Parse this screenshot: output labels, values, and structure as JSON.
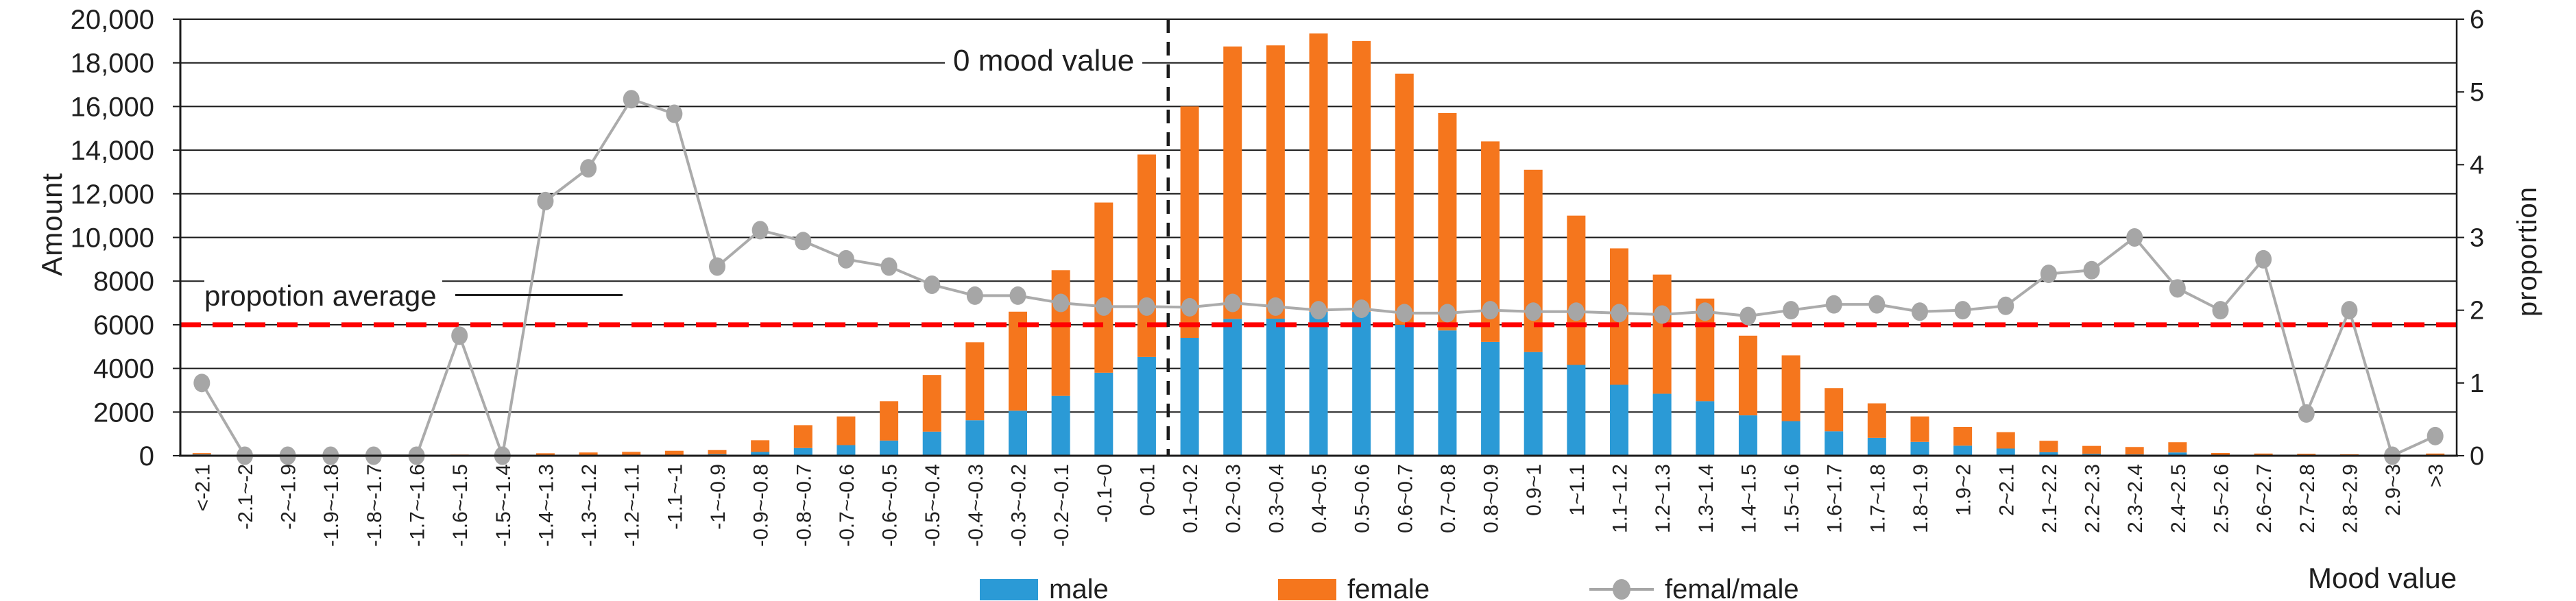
{
  "chart_data": {
    "type": "bar",
    "subtype": "stacked-bar-with-line-overlay",
    "title": "",
    "categories": [
      "<-2.1",
      "-2.1~-2",
      "-2~-1.9",
      "-1.9~-1.8",
      "-1.8~-1.7",
      "-1.7~-1.6",
      "-1.6~-1.5",
      "-1.5~-1.4",
      "-1.4~-1.3",
      "-1.3~-1.2",
      "-1.2~-1.1",
      "-1.1~-1",
      "-1~-0.9",
      "-0.9~-0.8",
      "-0.8~-0.7",
      "-0.7~-0.6",
      "-0.6~-0.5",
      "-0.5~-0.4",
      "-0.4~-0.3",
      "-0.3~-0.2",
      "-0.2~-0.1",
      "-0.1~0",
      "0~0.1",
      "0.1~0.2",
      "0.2~0.3",
      "0.3~0.4",
      "0.4~0.5",
      "0.5~0.6",
      "0.6~0.7",
      "0.7~0.8",
      "0.8~0.9",
      "0.9~1",
      "1~1.1",
      "1.1~1.2",
      "1.2~1.3",
      "1.3~1.4",
      "1.4~1.5",
      "1.5~1.6",
      "1.6~1.7",
      "1.7~1.8",
      "1.8~1.9",
      "1.9~2",
      "2~2.1",
      "2.1~2.2",
      "2.2~2.3",
      "2.3~2.4",
      "2.4~2.5",
      "2.5~2.6",
      "2.6~2.7",
      "2.7~2.8",
      "2.8~2.9",
      "2.9~3",
      ">3"
    ],
    "series": [
      {
        "name": "male",
        "type": "bar",
        "stack": "amount",
        "color": "#2b9ad6",
        "values": [
          60,
          0,
          0,
          0,
          0,
          0,
          20,
          0,
          25,
          30,
          30,
          40,
          72,
          173,
          354,
          486,
          694,
          1104,
          1625,
          2063,
          2742,
          3803,
          4525,
          5400,
          6270,
          6280,
          6600,
          6600,
          6000,
          5740,
          5215,
          4750,
          4160,
          3250,
          2840,
          2500,
          1850,
          1585,
          1120,
          820,
          635,
          460,
          330,
          160,
          85,
          60,
          150,
          30,
          25,
          25,
          20,
          5,
          30
        ]
      },
      {
        "name": "female",
        "type": "bar",
        "stack": "amount",
        "color": "#f5761d",
        "values": [
          60,
          0,
          0,
          0,
          0,
          0,
          33,
          0,
          88,
          119,
          147,
          188,
          187,
          537,
          1046,
          1314,
          1806,
          2596,
          3575,
          4537,
          5758,
          7797,
          9275,
          10600,
          12480,
          12520,
          12750,
          12400,
          11500,
          9960,
          9185,
          8350,
          6840,
          6250,
          5460,
          4700,
          3650,
          3015,
          1980,
          1580,
          1165,
          860,
          750,
          525,
          365,
          340,
          470,
          95,
          75,
          65,
          45,
          5,
          70
        ]
      },
      {
        "name": "femal/male",
        "type": "line",
        "axis": "right",
        "color": "#a6a6a6",
        "values": [
          1.0,
          0,
          0,
          0,
          0,
          0,
          1.65,
          0,
          3.5,
          3.95,
          4.9,
          4.7,
          2.6,
          3.1,
          2.95,
          2.7,
          2.6,
          2.35,
          2.2,
          2.2,
          2.1,
          2.05,
          2.05,
          2.04,
          2.1,
          2.05,
          2.0,
          2.02,
          1.96,
          1.96,
          2.0,
          1.98,
          1.98,
          1.96,
          1.94,
          1.98,
          1.92,
          2.0,
          2.08,
          2.08,
          1.98,
          2.0,
          2.06,
          2.5,
          2.55,
          3.0,
          2.3,
          2.0,
          2.7,
          0.58,
          2.0,
          0.0,
          0.27
        ]
      }
    ],
    "left_axis": {
      "title": "Amount",
      "min": 0,
      "max": 20000,
      "step": 2000,
      "tick_labels": [
        "0",
        "2000",
        "4000",
        "6000",
        "8000",
        "10,000",
        "12,000",
        "14,000",
        "16,000",
        "18,000",
        "20,000"
      ]
    },
    "right_axis": {
      "title": "proportion",
      "min": 0,
      "max": 6,
      "step": 1,
      "tick_labels": [
        "0",
        "1",
        "2",
        "3",
        "4",
        "5",
        "6"
      ]
    },
    "x_axis": {
      "title": "Mood value"
    },
    "annotations": {
      "proportion_average": {
        "label": "propotion average",
        "value_right_axis": 1.8,
        "color": "#ff0000"
      },
      "zero_mood": {
        "label": "0 mood value",
        "after_category": "0~0.1",
        "line_color": "#1a1a1a"
      }
    },
    "legend": {
      "position": "bottom",
      "entries": [
        "male",
        "female",
        "femal/male"
      ]
    },
    "grid": "horizontal-on",
    "plot_border": "box"
  }
}
